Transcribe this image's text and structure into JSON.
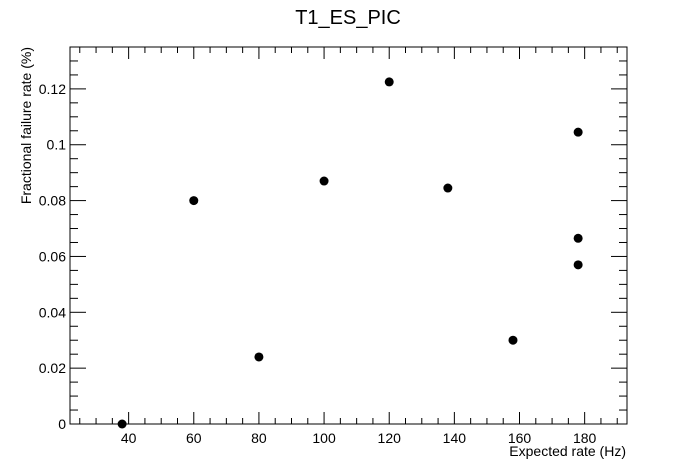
{
  "chart_data": {
    "type": "scatter",
    "title": "T1_ES_PIC",
    "xlabel": "Expected rate (Hz)",
    "ylabel": "Fractional failure rate (%)",
    "xlim": [
      22,
      193
    ],
    "ylim": [
      0,
      0.135
    ],
    "x_ticks": [
      40,
      60,
      80,
      100,
      120,
      140,
      160,
      180
    ],
    "y_ticks": [
      0,
      0.02,
      0.04,
      0.06,
      0.08,
      0.1,
      0.12
    ],
    "x_tick_labels": [
      "40",
      "60",
      "80",
      "100",
      "120",
      "140",
      "160",
      "180"
    ],
    "y_tick_labels": [
      "0",
      "0.02",
      "0.04",
      "0.06",
      "0.08",
      "0.1",
      "0.12"
    ],
    "grid": false,
    "marker_color": "#000000",
    "points": [
      {
        "x": 38,
        "y": 0.0
      },
      {
        "x": 60,
        "y": 0.08
      },
      {
        "x": 80,
        "y": 0.024
      },
      {
        "x": 100,
        "y": 0.087
      },
      {
        "x": 120,
        "y": 0.1225
      },
      {
        "x": 138,
        "y": 0.0845
      },
      {
        "x": 158,
        "y": 0.03
      },
      {
        "x": 178,
        "y": 0.1045
      },
      {
        "x": 178,
        "y": 0.0665
      },
      {
        "x": 178,
        "y": 0.057
      }
    ]
  }
}
